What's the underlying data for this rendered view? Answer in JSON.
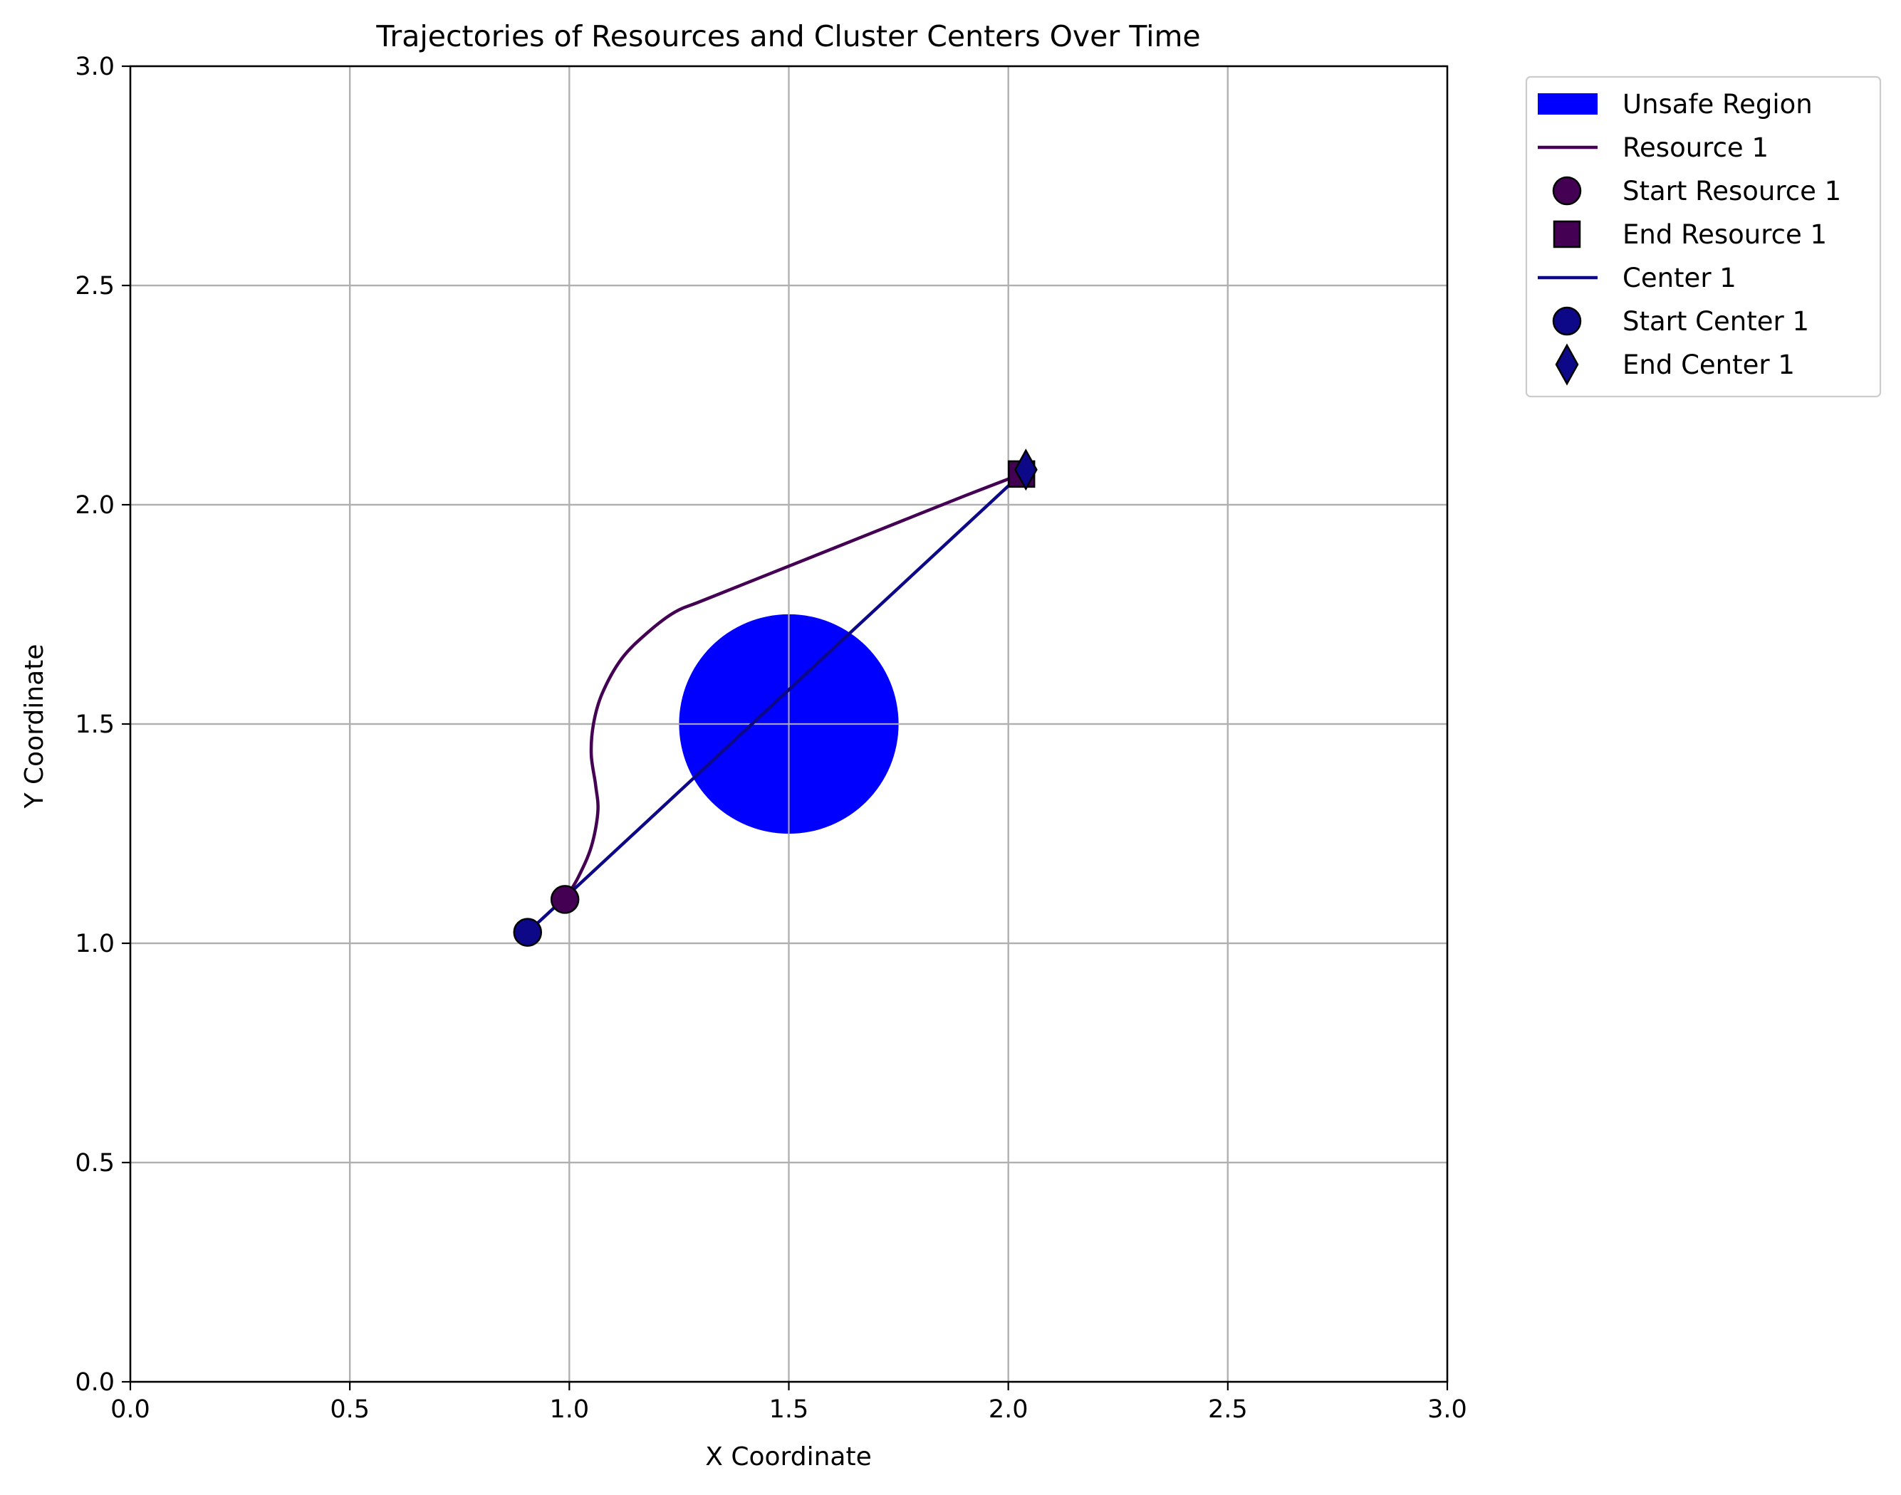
{
  "chart_data": {
    "type": "line",
    "title": "Trajectories of Resources and Cluster Centers Over Time",
    "xlabel": "X Coordinate",
    "ylabel": "Y Coordinate",
    "xlim": [
      0.0,
      3.0
    ],
    "ylim": [
      0.0,
      3.0
    ],
    "xticks": [
      "0.0",
      "0.5",
      "1.0",
      "1.5",
      "2.0",
      "2.5",
      "3.0"
    ],
    "yticks": [
      "0.0",
      "0.5",
      "1.0",
      "1.5",
      "2.0",
      "2.5",
      "3.0"
    ],
    "grid": true,
    "legend_position": "outside upper right",
    "unsafe_region": {
      "center": [
        1.5,
        1.5
      ],
      "radius": 0.25,
      "color": "#0000ff"
    },
    "series": [
      {
        "name": "Resource 1",
        "color": "#440154",
        "x": [
          0.99,
          1.02,
          1.05,
          1.065,
          1.06,
          1.05,
          1.055,
          1.075,
          1.12,
          1.18,
          1.24,
          1.3,
          1.45,
          1.6,
          1.75,
          1.9,
          2.03
        ],
        "y": [
          1.1,
          1.15,
          1.22,
          1.3,
          1.36,
          1.43,
          1.5,
          1.57,
          1.65,
          1.71,
          1.755,
          1.78,
          1.84,
          1.9,
          1.96,
          2.02,
          2.07
        ]
      },
      {
        "name": "Center 1",
        "color": "#0d0887",
        "x": [
          0.905,
          2.04
        ],
        "y": [
          1.025,
          2.08
        ]
      }
    ],
    "markers": [
      {
        "name": "Start Resource 1",
        "shape": "circle",
        "x": 0.99,
        "y": 1.1,
        "color": "#440154"
      },
      {
        "name": "End Resource 1",
        "shape": "square",
        "x": 2.03,
        "y": 2.07,
        "color": "#440154"
      },
      {
        "name": "Start Center 1",
        "shape": "circle",
        "x": 0.905,
        "y": 1.025,
        "color": "#0d0887"
      },
      {
        "name": "End Center 1",
        "shape": "diamond",
        "x": 2.04,
        "y": 2.08,
        "color": "#0d0887"
      }
    ],
    "legend": [
      {
        "label": "Unsafe Region",
        "kind": "patch",
        "color": "#0000ff"
      },
      {
        "label": "Resource 1",
        "kind": "line",
        "color": "#440154"
      },
      {
        "label": "Start Resource 1",
        "kind": "circle",
        "color": "#440154"
      },
      {
        "label": "End Resource 1",
        "kind": "square",
        "color": "#440154"
      },
      {
        "label": "Center 1",
        "kind": "line",
        "color": "#0d0887"
      },
      {
        "label": "Start Center 1",
        "kind": "circle",
        "color": "#0d0887"
      },
      {
        "label": "End Center 1",
        "kind": "diamond",
        "color": "#0d0887"
      }
    ]
  }
}
